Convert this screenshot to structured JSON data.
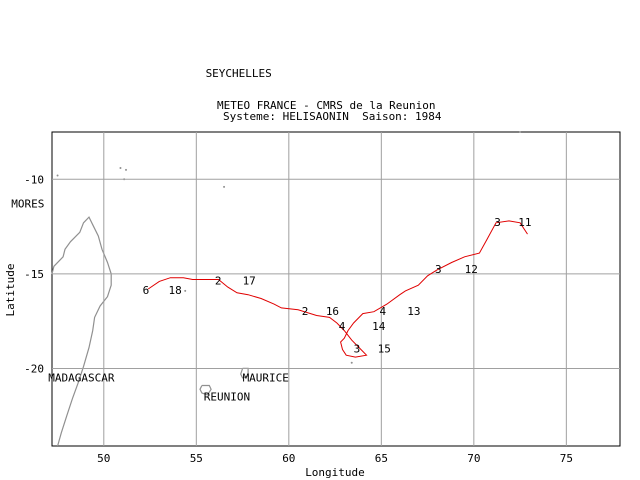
{
  "header": {
    "line1": "METEO FRANCE - CMRS de la Reunion",
    "line2": "Systeme: HELISAONIN  Saison: 1984"
  },
  "axes": {
    "xlabel": "Longitude",
    "ylabel": "Latitude",
    "xlim": [
      47.2,
      77.9
    ],
    "ylim": [
      -24.1,
      -7.5
    ],
    "xticks": [
      50,
      55,
      60,
      65,
      70,
      75
    ],
    "yticks": [
      -10,
      -15,
      -20
    ],
    "grid": true,
    "grid_color": "#a0a0a0"
  },
  "places": [
    {
      "name": "SEYCHELLES",
      "lon": 55.5,
      "lat": -4.6
    },
    {
      "name": "MORES",
      "lon": 45.0,
      "lat": -11.5
    },
    {
      "name": "MADAGASCAR",
      "lon": 47.0,
      "lat": -20.7
    },
    {
      "name": "MAURICE",
      "lon": 57.5,
      "lat": -20.7
    },
    {
      "name": "REUNION",
      "lon": 55.4,
      "lat": -21.7
    }
  ],
  "track": {
    "color": "#e00000",
    "points": [
      {
        "lon": 72.9,
        "lat": -12.9
      },
      {
        "lon": 72.5,
        "lat": -12.3
      },
      {
        "lon": 71.9,
        "lat": -12.2
      },
      {
        "lon": 71.2,
        "lat": -12.3
      },
      {
        "lon": 70.7,
        "lat": -13.2
      },
      {
        "lon": 70.3,
        "lat": -13.9
      },
      {
        "lon": 69.5,
        "lat": -14.1
      },
      {
        "lon": 68.8,
        "lat": -14.4
      },
      {
        "lon": 68.0,
        "lat": -14.8
      },
      {
        "lon": 67.5,
        "lat": -15.1
      },
      {
        "lon": 67.0,
        "lat": -15.6
      },
      {
        "lon": 66.3,
        "lat": -15.9
      },
      {
        "lon": 66.0,
        "lat": -16.1
      },
      {
        "lon": 65.3,
        "lat": -16.6
      },
      {
        "lon": 64.6,
        "lat": -17.0
      },
      {
        "lon": 64.0,
        "lat": -17.1
      },
      {
        "lon": 63.5,
        "lat": -17.6
      },
      {
        "lon": 63.2,
        "lat": -18.0
      },
      {
        "lon": 63.0,
        "lat": -18.4
      },
      {
        "lon": 62.8,
        "lat": -18.6
      },
      {
        "lon": 62.9,
        "lat": -19.0
      },
      {
        "lon": 63.1,
        "lat": -19.3
      },
      {
        "lon": 63.6,
        "lat": -19.4
      },
      {
        "lon": 64.2,
        "lat": -19.3
      },
      {
        "lon": 63.8,
        "lat": -18.9
      },
      {
        "lon": 63.4,
        "lat": -18.5
      },
      {
        "lon": 63.0,
        "lat": -18.0
      },
      {
        "lon": 62.6,
        "lat": -17.6
      },
      {
        "lon": 62.2,
        "lat": -17.3
      },
      {
        "lon": 61.5,
        "lat": -17.2
      },
      {
        "lon": 60.5,
        "lat": -16.9
      },
      {
        "lon": 59.6,
        "lat": -16.8
      },
      {
        "lon": 59.2,
        "lat": -16.6
      },
      {
        "lon": 58.5,
        "lat": -16.3
      },
      {
        "lon": 57.8,
        "lat": -16.1
      },
      {
        "lon": 57.2,
        "lat": -16.0
      },
      {
        "lon": 56.7,
        "lat": -15.7
      },
      {
        "lon": 56.2,
        "lat": -15.3
      },
      {
        "lon": 55.4,
        "lat": -15.3
      },
      {
        "lon": 54.8,
        "lat": -15.3
      },
      {
        "lon": 54.3,
        "lat": -15.2
      },
      {
        "lon": 53.6,
        "lat": -15.2
      },
      {
        "lon": 53.0,
        "lat": -15.4
      },
      {
        "lon": 52.4,
        "lat": -15.8
      }
    ]
  },
  "track_labels": [
    {
      "text": "3",
      "lon": 71.1,
      "lat": -12.25
    },
    {
      "text": "11",
      "lon": 72.4,
      "lat": -12.25
    },
    {
      "text": "3",
      "lon": 67.9,
      "lat": -14.75
    },
    {
      "text": "12",
      "lon": 69.5,
      "lat": -14.75
    },
    {
      "text": "13",
      "lon": 66.4,
      "lat": -16.95
    },
    {
      "text": "4",
      "lon": 64.9,
      "lat": -16.95
    },
    {
      "text": "14",
      "lon": 64.5,
      "lat": -17.75
    },
    {
      "text": "4",
      "lon": 62.7,
      "lat": -17.75
    },
    {
      "text": "3",
      "lon": 63.5,
      "lat": -18.95
    },
    {
      "text": "15",
      "lon": 64.8,
      "lat": -18.95
    },
    {
      "text": "2",
      "lon": 60.7,
      "lat": -16.95
    },
    {
      "text": "16",
      "lon": 62.0,
      "lat": -16.95
    },
    {
      "text": "2",
      "lon": 56.0,
      "lat": -15.35
    },
    {
      "text": "17",
      "lon": 57.5,
      "lat": -15.35
    },
    {
      "text": "6",
      "lon": 52.1,
      "lat": -15.85
    },
    {
      "text": "18",
      "lon": 53.5,
      "lat": -15.85
    }
  ],
  "coastlines": {
    "color": "#909090",
    "madagascar": [
      [
        47.5,
        -24.1
      ],
      [
        47.7,
        -23.4
      ],
      [
        48.0,
        -22.5
      ],
      [
        48.3,
        -21.6
      ],
      [
        48.6,
        -20.8
      ],
      [
        48.9,
        -19.9
      ],
      [
        49.2,
        -18.9
      ],
      [
        49.4,
        -18.0
      ],
      [
        49.5,
        -17.3
      ],
      [
        49.8,
        -16.7
      ],
      [
        50.2,
        -16.2
      ],
      [
        50.4,
        -15.6
      ],
      [
        50.4,
        -15.0
      ],
      [
        50.2,
        -14.4
      ],
      [
        49.9,
        -13.7
      ],
      [
        49.7,
        -13.0
      ],
      [
        49.4,
        -12.4
      ],
      [
        49.2,
        -12.0
      ],
      [
        48.9,
        -12.3
      ],
      [
        48.7,
        -12.8
      ],
      [
        48.2,
        -13.3
      ],
      [
        47.9,
        -13.7
      ],
      [
        47.8,
        -14.1
      ],
      [
        47.3,
        -14.6
      ],
      [
        47.2,
        -15.0
      ]
    ],
    "reunion": [
      [
        55.3,
        -20.9
      ],
      [
        55.7,
        -20.9
      ],
      [
        55.8,
        -21.1
      ],
      [
        55.6,
        -21.4
      ],
      [
        55.3,
        -21.3
      ],
      [
        55.2,
        -21.1
      ],
      [
        55.3,
        -20.9
      ]
    ],
    "maurice": [
      [
        57.5,
        -20.0
      ],
      [
        57.8,
        -20.0
      ],
      [
        57.8,
        -20.4
      ],
      [
        57.5,
        -20.5
      ],
      [
        57.4,
        -20.3
      ],
      [
        57.5,
        -20.0
      ]
    ],
    "islets": [
      [
        56.5,
        -10.4
      ],
      [
        63.4,
        -19.7
      ],
      [
        50.9,
        -9.4
      ],
      [
        51.2,
        -9.5
      ],
      [
        51.1,
        -10.0
      ],
      [
        47.5,
        -9.8
      ],
      [
        54.4,
        -15.9
      ],
      [
        72.5,
        -7.4
      ]
    ]
  }
}
